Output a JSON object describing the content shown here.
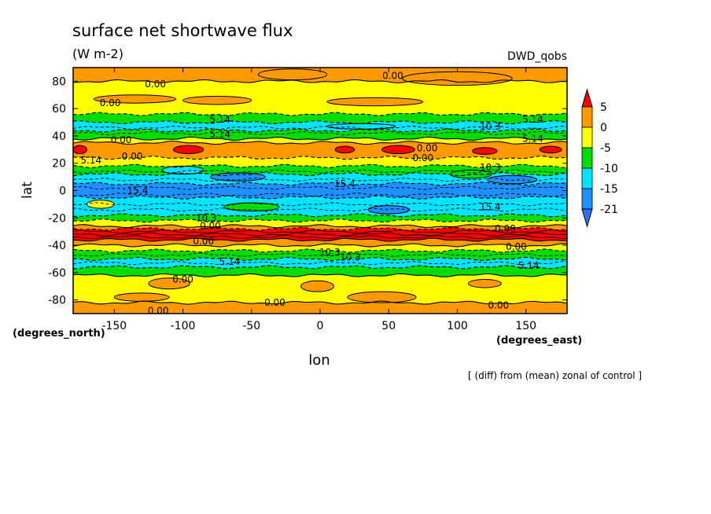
{
  "chart_data": {
    "type": "heatmap",
    "title": "surface net shortwave flux",
    "subtitle": "(W m-2)",
    "dataset_label": "DWD_qobs",
    "xlabel": "lon",
    "ylabel": "lat",
    "x_units": "(degrees_east)",
    "y_units": "(degrees_north)",
    "footer": "[ (diff) from (mean) zonal of control ]",
    "xlim": [
      -180,
      180
    ],
    "ylim": [
      -90,
      90
    ],
    "x_ticks": [
      -150,
      -100,
      -50,
      0,
      50,
      100,
      150
    ],
    "y_ticks": [
      80,
      60,
      40,
      20,
      0,
      -20,
      -40,
      -60,
      -80
    ],
    "grid": false,
    "legend_position": "right",
    "colorbar": {
      "labels": [
        "5",
        "0",
        "-5",
        "-10",
        "-15",
        "-21"
      ],
      "levels": [
        5,
        0,
        -5,
        -10,
        -15,
        -21
      ],
      "colors": [
        "#ff0000",
        "#ff9900",
        "#ffff00",
        "#00dd00",
        "#00e5ff",
        "#1e90ff",
        "#3070ff"
      ]
    },
    "zonal_bands": [
      {
        "lat_from": 90,
        "lat_to": 80,
        "class": "orange"
      },
      {
        "lat_from": 80,
        "lat_to": 56,
        "class": "yellow"
      },
      {
        "lat_from": 56,
        "lat_to": 50,
        "class": "green"
      },
      {
        "lat_from": 50,
        "lat_to": 44,
        "class": "cyan"
      },
      {
        "lat_from": 44,
        "lat_to": 38,
        "class": "green"
      },
      {
        "lat_from": 38,
        "lat_to": 35,
        "class": "yellow"
      },
      {
        "lat_from": 35,
        "lat_to": 24,
        "class": "orange"
      },
      {
        "lat_from": 24,
        "lat_to": 18,
        "class": "yellow"
      },
      {
        "lat_from": 18,
        "lat_to": 12,
        "class": "green"
      },
      {
        "lat_from": 12,
        "lat_to": 5,
        "class": "cyan"
      },
      {
        "lat_from": 5,
        "lat_to": -5,
        "class": "blue"
      },
      {
        "lat_from": -5,
        "lat_to": -18,
        "class": "cyan"
      },
      {
        "lat_from": -18,
        "lat_to": -22,
        "class": "green"
      },
      {
        "lat_from": -22,
        "lat_to": -26,
        "class": "yellow"
      },
      {
        "lat_from": -26,
        "lat_to": -28,
        "class": "orange"
      },
      {
        "lat_from": -28,
        "lat_to": -36,
        "class": "red"
      },
      {
        "lat_from": -36,
        "lat_to": -40,
        "class": "orange"
      },
      {
        "lat_from": -40,
        "lat_to": -44,
        "class": "yellow"
      },
      {
        "lat_from": -44,
        "lat_to": -50,
        "class": "green"
      },
      {
        "lat_from": -50,
        "lat_to": -56,
        "class": "cyan"
      },
      {
        "lat_from": -56,
        "lat_to": -62,
        "class": "green"
      },
      {
        "lat_from": -62,
        "lat_to": -82,
        "class": "yellow"
      },
      {
        "lat_from": -82,
        "lat_to": -90,
        "class": "orange"
      }
    ],
    "contour_labels": [
      {
        "text": "0.00",
        "lon": -120,
        "lat": 78
      },
      {
        "text": "0.00",
        "lon": 53,
        "lat": 84
      },
      {
        "text": "0.00",
        "lon": -153,
        "lat": 64
      },
      {
        "text": "5.14",
        "lon": -73,
        "lat": 52
      },
      {
        "text": "10.3",
        "lon": 124,
        "lat": 47
      },
      {
        "text": "5.14",
        "lon": 155,
        "lat": 52
      },
      {
        "text": "0.00",
        "lon": -145,
        "lat": 37
      },
      {
        "text": "5.14",
        "lon": -73,
        "lat": 41
      },
      {
        "text": "0.00",
        "lon": 78,
        "lat": 31
      },
      {
        "text": "5.14",
        "lon": 155,
        "lat": 38
      },
      {
        "text": "5.14",
        "lon": -167,
        "lat": 22
      },
      {
        "text": "0.00",
        "lon": -137,
        "lat": 25
      },
      {
        "text": "0.00",
        "lon": 75,
        "lat": 24
      },
      {
        "text": "10.3",
        "lon": 124,
        "lat": 17
      },
      {
        "text": "15.4",
        "lon": -133,
        "lat": 0
      },
      {
        "text": "15.4",
        "lon": 18,
        "lat": 5
      },
      {
        "text": "15.4",
        "lon": 124,
        "lat": -12
      },
      {
        "text": "10.3",
        "lon": -83,
        "lat": -20
      },
      {
        "text": "0.00",
        "lon": -80,
        "lat": -26
      },
      {
        "text": "0.00",
        "lon": 135,
        "lat": -28
      },
      {
        "text": "0.00",
        "lon": -85,
        "lat": -37
      },
      {
        "text": "0.00",
        "lon": 143,
        "lat": -41
      },
      {
        "text": "10.3",
        "lon": 7,
        "lat": -45
      },
      {
        "text": "10.3",
        "lon": 22,
        "lat": -49
      },
      {
        "text": "5.14",
        "lon": -66,
        "lat": -52
      },
      {
        "text": "5.14",
        "lon": 152,
        "lat": -55
      },
      {
        "text": "0.00",
        "lon": -100,
        "lat": -65
      },
      {
        "text": "0.00",
        "lon": -33,
        "lat": -82
      },
      {
        "text": "0.00",
        "lon": 130,
        "lat": -84
      },
      {
        "text": "0.00",
        "lon": -118,
        "lat": -88
      }
    ],
    "blobs": [
      {
        "class": "red",
        "lon": -175,
        "lat": 30,
        "rlon": 5,
        "rlat": 3
      },
      {
        "class": "red",
        "lon": -96,
        "lat": 30,
        "rlon": 11,
        "rlat": 3
      },
      {
        "class": "red",
        "lon": 18,
        "lat": 30,
        "rlon": 7,
        "rlat": 2.5
      },
      {
        "class": "red",
        "lon": 57,
        "lat": 30,
        "rlon": 12,
        "rlat": 3
      },
      {
        "class": "red",
        "lon": 120,
        "lat": 29,
        "rlon": 9,
        "rlat": 2.5
      },
      {
        "class": "red",
        "lon": 168,
        "lat": 30,
        "rlon": 8,
        "rlat": 2.5
      },
      {
        "class": "orange",
        "lon": -135,
        "lat": 67,
        "rlon": 30,
        "rlat": 3
      },
      {
        "class": "orange",
        "lon": -75,
        "lat": 66,
        "rlon": 25,
        "rlat": 3
      },
      {
        "class": "orange",
        "lon": 40,
        "lat": 65,
        "rlon": 35,
        "rlat": 3
      },
      {
        "class": "orange",
        "lon": -20,
        "lat": 85,
        "rlon": 25,
        "rlat": 4
      },
      {
        "class": "orange",
        "lon": 100,
        "lat": 82,
        "rlon": 40,
        "rlat": 5
      },
      {
        "class": "orange",
        "lon": -110,
        "lat": -68,
        "rlon": 15,
        "rlat": 4
      },
      {
        "class": "orange",
        "lon": -2,
        "lat": -70,
        "rlon": 12,
        "rlat": 4
      },
      {
        "class": "orange",
        "lon": 120,
        "lat": -68,
        "rlon": 12,
        "rlat": 3
      },
      {
        "class": "orange",
        "lon": 45,
        "lat": -78,
        "rlon": 25,
        "rlat": 4
      },
      {
        "class": "orange",
        "lon": -130,
        "lat": -78,
        "rlon": 20,
        "rlat": 3
      },
      {
        "class": "blue",
        "lon": 50,
        "lat": -14,
        "rlon": 15,
        "rlat": 3
      },
      {
        "class": "blue",
        "lon": -60,
        "lat": 10,
        "rlon": 20,
        "rlat": 3
      },
      {
        "class": "blue",
        "lon": 140,
        "lat": 8,
        "rlon": 18,
        "rlat": 3
      },
      {
        "class": "yellow",
        "lon": -160,
        "lat": -10,
        "rlon": 10,
        "rlat": 3
      },
      {
        "class": "green",
        "lon": -50,
        "lat": -12,
        "rlon": 20,
        "rlat": 3
      },
      {
        "class": "green",
        "lon": 110,
        "lat": 12,
        "rlon": 15,
        "rlat": 3
      },
      {
        "class": "cyan",
        "lon": -100,
        "lat": 15,
        "rlon": 15,
        "rlat": 3
      },
      {
        "class": "cyan",
        "lon": 30,
        "lat": 47,
        "rlon": 25,
        "rlat": 2
      }
    ]
  }
}
